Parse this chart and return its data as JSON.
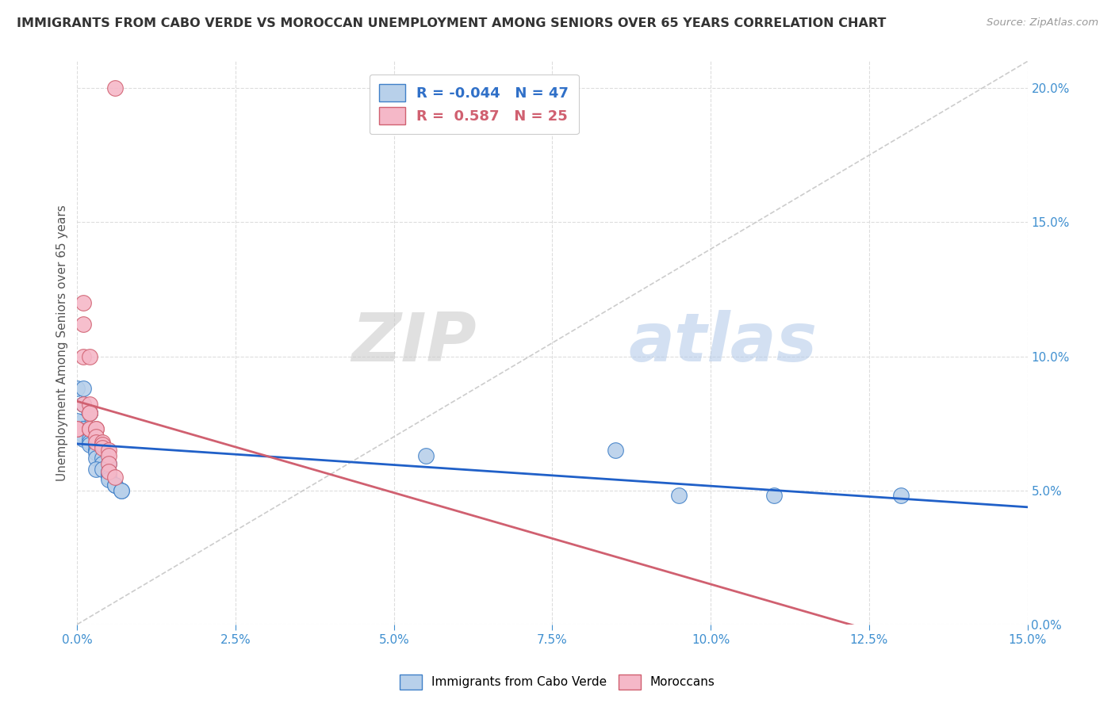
{
  "title": "IMMIGRANTS FROM CABO VERDE VS MOROCCAN UNEMPLOYMENT AMONG SENIORS OVER 65 YEARS CORRELATION CHART",
  "source": "Source: ZipAtlas.com",
  "ylabel": "Unemployment Among Seniors over 65 years",
  "legend_cabo": "Immigrants from Cabo Verde",
  "legend_moroccan": "Moroccans",
  "R_cabo": -0.044,
  "N_cabo": 47,
  "R_moroccan": 0.587,
  "N_moroccan": 25,
  "cabo_color": "#b8d0ea",
  "moroccan_color": "#f5b8c8",
  "cabo_edge_color": "#4080c8",
  "moroccan_edge_color": "#d06070",
  "cabo_line_color": "#2060c8",
  "moroccan_line_color": "#d06070",
  "cabo_scatter": [
    [
      0.0,
      0.088
    ],
    [
      0.001,
      0.088
    ],
    [
      0.001,
      0.082
    ],
    [
      0.001,
      0.082
    ],
    [
      0.002,
      0.079
    ],
    [
      0.002,
      0.079
    ],
    [
      0.001,
      0.076
    ],
    [
      0.0,
      0.076
    ],
    [
      0.001,
      0.073
    ],
    [
      0.001,
      0.073
    ],
    [
      0.001,
      0.072
    ],
    [
      0.002,
      0.072
    ],
    [
      0.001,
      0.071
    ],
    [
      0.001,
      0.071
    ],
    [
      0.002,
      0.07
    ],
    [
      0.002,
      0.07
    ],
    [
      0.001,
      0.069
    ],
    [
      0.002,
      0.069
    ],
    [
      0.002,
      0.068
    ],
    [
      0.003,
      0.068
    ],
    [
      0.002,
      0.067
    ],
    [
      0.003,
      0.067
    ],
    [
      0.003,
      0.065
    ],
    [
      0.003,
      0.065
    ],
    [
      0.003,
      0.064
    ],
    [
      0.004,
      0.064
    ],
    [
      0.004,
      0.063
    ],
    [
      0.004,
      0.063
    ],
    [
      0.003,
      0.062
    ],
    [
      0.004,
      0.062
    ],
    [
      0.004,
      0.06
    ],
    [
      0.005,
      0.06
    ],
    [
      0.003,
      0.058
    ],
    [
      0.004,
      0.058
    ],
    [
      0.005,
      0.057
    ],
    [
      0.005,
      0.056
    ],
    [
      0.005,
      0.055
    ],
    [
      0.005,
      0.054
    ],
    [
      0.006,
      0.052
    ],
    [
      0.006,
      0.052
    ],
    [
      0.007,
      0.05
    ],
    [
      0.007,
      0.05
    ],
    [
      0.055,
      0.063
    ],
    [
      0.085,
      0.065
    ],
    [
      0.095,
      0.048
    ],
    [
      0.11,
      0.048
    ],
    [
      0.13,
      0.048
    ]
  ],
  "moroccan_scatter": [
    [
      0.0,
      0.073
    ],
    [
      0.0,
      0.073
    ],
    [
      0.001,
      0.12
    ],
    [
      0.001,
      0.112
    ],
    [
      0.001,
      0.1
    ],
    [
      0.002,
      0.1
    ],
    [
      0.001,
      0.082
    ],
    [
      0.002,
      0.082
    ],
    [
      0.002,
      0.079
    ],
    [
      0.002,
      0.079
    ],
    [
      0.002,
      0.073
    ],
    [
      0.002,
      0.073
    ],
    [
      0.003,
      0.073
    ],
    [
      0.003,
      0.073
    ],
    [
      0.003,
      0.07
    ],
    [
      0.003,
      0.068
    ],
    [
      0.004,
      0.068
    ],
    [
      0.004,
      0.067
    ],
    [
      0.004,
      0.066
    ],
    [
      0.005,
      0.065
    ],
    [
      0.005,
      0.063
    ],
    [
      0.005,
      0.06
    ],
    [
      0.005,
      0.057
    ],
    [
      0.006,
      0.055
    ],
    [
      0.006,
      0.2
    ]
  ],
  "xlim": [
    0.0,
    0.15
  ],
  "ylim": [
    0.0,
    0.21
  ],
  "xticks": [
    0.0,
    0.025,
    0.05,
    0.075,
    0.1,
    0.125,
    0.15
  ],
  "yticks": [
    0.0,
    0.05,
    0.1,
    0.15,
    0.2
  ],
  "background_color": "#ffffff",
  "grid_color": "#dddddd",
  "watermark_zip": "ZIP",
  "watermark_atlas": "atlas"
}
